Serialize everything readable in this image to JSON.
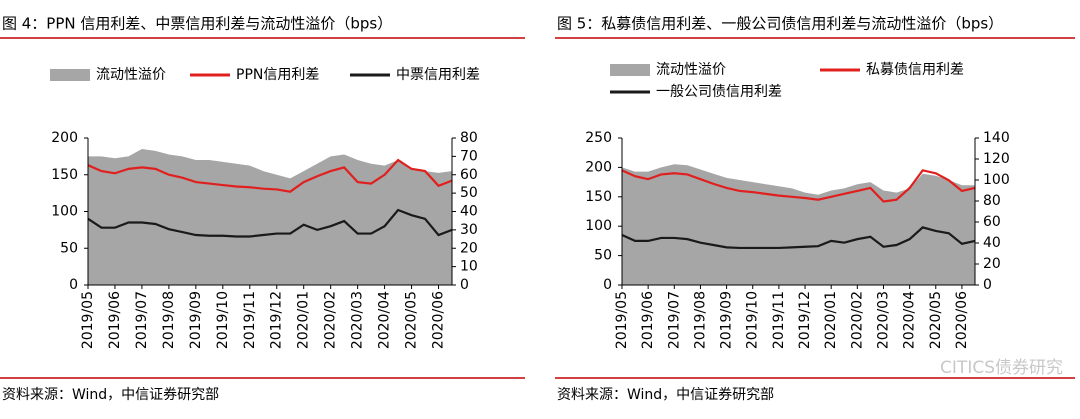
{
  "chart_data": [
    {
      "type": "line",
      "title": "图 4：PPN 信用利差、中票信用利差与流动性溢价（bps）",
      "source": "资料来源：Wind，中信证券研究部",
      "categories": [
        "2019/05",
        null,
        "2019/06",
        null,
        "2019/07",
        null,
        "2019/08",
        null,
        "2019/09",
        null,
        "2019/10",
        null,
        "2019/11",
        null,
        "2019/12",
        null,
        "2020/01",
        null,
        "2020/02",
        null,
        "2020/03",
        null,
        "2020/04",
        null,
        "2020/05",
        null,
        "2020/06",
        null
      ],
      "ylim": [
        0,
        200
      ],
      "yticks": [
        0,
        50,
        100,
        150,
        200
      ],
      "y2lim": [
        0,
        80
      ],
      "y2ticks": [
        0,
        10,
        20,
        30,
        40,
        50,
        60,
        70,
        80
      ],
      "series": [
        {
          "name": "流动性溢价",
          "type": "area",
          "axis": "y2",
          "color": "#a6a6a6",
          "values": [
            70,
            70,
            69,
            70,
            74,
            73,
            71,
            70,
            68,
            68,
            67,
            66,
            65,
            62,
            60,
            58,
            62,
            66,
            70,
            71,
            68,
            66,
            65,
            68,
            63,
            62,
            61,
            62
          ]
        },
        {
          "name": "PPN信用利差",
          "color": "#e0201f",
          "values": [
            163,
            155,
            152,
            158,
            160,
            158,
            150,
            146,
            140,
            138,
            136,
            134,
            133,
            131,
            130,
            127,
            140,
            148,
            155,
            160,
            140,
            138,
            150,
            170,
            158,
            155,
            135,
            142
          ]
        },
        {
          "name": "中票信用利差",
          "color": "#1a1a1a",
          "values": [
            90,
            78,
            78,
            85,
            85,
            83,
            76,
            72,
            68,
            67,
            67,
            66,
            66,
            68,
            70,
            70,
            82,
            75,
            80,
            87,
            70,
            70,
            80,
            102,
            95,
            90,
            68,
            75
          ]
        }
      ]
    },
    {
      "type": "line",
      "title": "图 5：私募债信用利差、一般公司债信用利差与流动性溢价（bps）",
      "source": "资料来源：Wind，中信证券研究部",
      "watermark": "CITICS债券研究",
      "categories": [
        "2019/05",
        null,
        "2019/06",
        null,
        "2019/07",
        null,
        "2019/08",
        null,
        "2019/09",
        null,
        "2019/10",
        null,
        "2019/11",
        null,
        "2019/12",
        null,
        "2020/01",
        null,
        "2020/02",
        null,
        "2020/03",
        null,
        "2020/04",
        null,
        "2020/05",
        null,
        "2020/06",
        null
      ],
      "ylim": [
        0,
        250
      ],
      "yticks": [
        0,
        50,
        100,
        150,
        200,
        250
      ],
      "y2lim": [
        0,
        140
      ],
      "y2ticks": [
        0,
        20,
        40,
        60,
        80,
        100,
        120,
        140
      ],
      "series": [
        {
          "name": "流动性溢价",
          "type": "area",
          "axis": "y2",
          "color": "#a6a6a6",
          "values": [
            112,
            108,
            108,
            112,
            115,
            114,
            110,
            106,
            102,
            100,
            98,
            96,
            94,
            92,
            88,
            86,
            90,
            92,
            96,
            98,
            90,
            88,
            92,
            106,
            104,
            100,
            95,
            95
          ]
        },
        {
          "name": "私募债信用利差",
          "color": "#e0201f",
          "values": [
            195,
            185,
            180,
            188,
            190,
            188,
            180,
            172,
            165,
            160,
            158,
            155,
            152,
            150,
            148,
            145,
            150,
            155,
            160,
            165,
            142,
            145,
            165,
            195,
            190,
            178,
            160,
            165
          ]
        },
        {
          "name": "一般公司债信用利差",
          "color": "#1a1a1a",
          "values": [
            85,
            75,
            75,
            80,
            80,
            78,
            72,
            68,
            64,
            63,
            63,
            63,
            63,
            64,
            65,
            66,
            75,
            72,
            78,
            82,
            65,
            68,
            78,
            98,
            92,
            88,
            70,
            75
          ]
        }
      ]
    }
  ]
}
